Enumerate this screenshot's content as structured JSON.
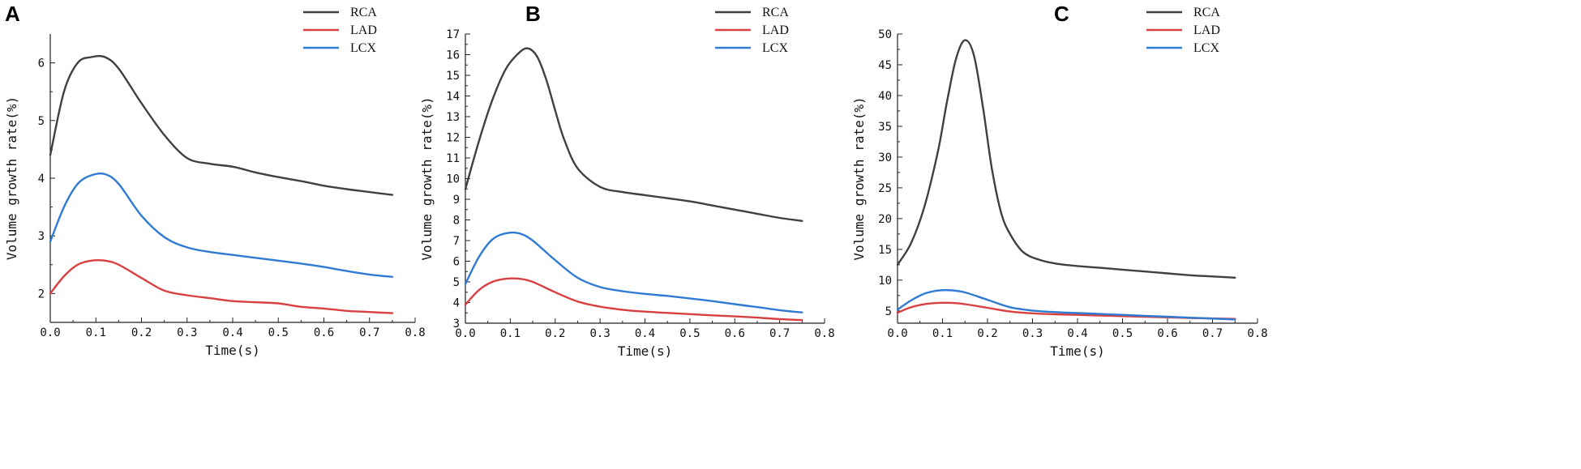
{
  "colors": {
    "RCA": "#404040",
    "LAD": "#d94040",
    "LCX": "#2f7bd4"
  },
  "chart_data": [
    {
      "type": "line",
      "panel": "A",
      "xlabel": "Time(s)",
      "ylabel": "Volume growth rate(%)",
      "xlim": [
        0.0,
        0.8
      ],
      "ylim": [
        1.5,
        6.5
      ],
      "xticks": [
        0.0,
        0.1,
        0.2,
        0.3,
        0.4,
        0.5,
        0.6,
        0.7,
        0.8
      ],
      "xtick_labels": [
        "0.0",
        "0.1",
        "0.2",
        "0.3",
        "0.4",
        "0.5",
        "0.6",
        "0.7",
        "0.8"
      ],
      "yticks": [
        2,
        3,
        4,
        5,
        6
      ],
      "ytick_labels": [
        "2",
        "3",
        "4",
        "5",
        "6"
      ],
      "grid": false,
      "legend": "top-right",
      "series": [
        {
          "name": "RCA",
          "x": [
            0.0,
            0.03,
            0.06,
            0.09,
            0.12,
            0.15,
            0.2,
            0.25,
            0.3,
            0.35,
            0.4,
            0.45,
            0.5,
            0.55,
            0.6,
            0.65,
            0.7,
            0.75
          ],
          "y": [
            4.4,
            5.5,
            6.0,
            6.1,
            6.1,
            5.9,
            5.3,
            4.75,
            4.35,
            4.25,
            4.2,
            4.1,
            4.02,
            3.95,
            3.87,
            3.81,
            3.76,
            3.71
          ]
        },
        {
          "name": "LAD",
          "x": [
            0.0,
            0.03,
            0.06,
            0.09,
            0.12,
            0.15,
            0.2,
            0.25,
            0.3,
            0.35,
            0.4,
            0.45,
            0.5,
            0.55,
            0.6,
            0.65,
            0.7,
            0.75
          ],
          "y": [
            2.0,
            2.3,
            2.5,
            2.57,
            2.57,
            2.5,
            2.27,
            2.05,
            1.97,
            1.92,
            1.87,
            1.85,
            1.83,
            1.77,
            1.74,
            1.7,
            1.68,
            1.66
          ]
        },
        {
          "name": "LCX",
          "x": [
            0.0,
            0.03,
            0.06,
            0.09,
            0.12,
            0.15,
            0.2,
            0.25,
            0.3,
            0.35,
            0.4,
            0.45,
            0.5,
            0.55,
            0.6,
            0.65,
            0.7,
            0.75
          ],
          "y": [
            2.9,
            3.5,
            3.9,
            4.05,
            4.07,
            3.9,
            3.35,
            2.98,
            2.8,
            2.72,
            2.67,
            2.62,
            2.57,
            2.52,
            2.46,
            2.39,
            2.33,
            2.29
          ]
        }
      ]
    },
    {
      "type": "line",
      "panel": "B",
      "xlabel": "Time(s)",
      "ylabel": "Volume growth rate(%)",
      "xlim": [
        0.0,
        0.8
      ],
      "ylim": [
        3,
        17
      ],
      "xticks": [
        0.0,
        0.1,
        0.2,
        0.3,
        0.4,
        0.5,
        0.6,
        0.7,
        0.8
      ],
      "xtick_labels": [
        "0.0",
        "0.1",
        "0.2",
        "0.3",
        "0.4",
        "0.5",
        "0.6",
        "0.7",
        "0.8"
      ],
      "yticks": [
        3,
        4,
        5,
        6,
        7,
        8,
        9,
        10,
        11,
        12,
        13,
        14,
        15,
        16,
        17
      ],
      "ytick_labels": [
        "3",
        "4",
        "5",
        "6",
        "7",
        "8",
        "9",
        "10",
        "11",
        "12",
        "13",
        "14",
        "15",
        "16",
        "17"
      ],
      "grid": false,
      "legend": "top-right",
      "series": [
        {
          "name": "RCA",
          "x": [
            0.0,
            0.03,
            0.06,
            0.09,
            0.12,
            0.14,
            0.16,
            0.18,
            0.2,
            0.22,
            0.25,
            0.3,
            0.35,
            0.4,
            0.45,
            0.5,
            0.55,
            0.6,
            0.65,
            0.7,
            0.75
          ],
          "y": [
            9.5,
            11.8,
            13.8,
            15.3,
            16.1,
            16.3,
            15.9,
            14.8,
            13.3,
            11.9,
            10.5,
            9.6,
            9.35,
            9.2,
            9.05,
            8.9,
            8.7,
            8.5,
            8.3,
            8.1,
            7.95
          ]
        },
        {
          "name": "LAD",
          "x": [
            0.0,
            0.03,
            0.06,
            0.09,
            0.12,
            0.15,
            0.2,
            0.25,
            0.3,
            0.35,
            0.4,
            0.45,
            0.5,
            0.55,
            0.6,
            0.65,
            0.7,
            0.75
          ],
          "y": [
            3.9,
            4.6,
            5.0,
            5.15,
            5.15,
            5.0,
            4.5,
            4.05,
            3.8,
            3.65,
            3.56,
            3.5,
            3.44,
            3.38,
            3.33,
            3.27,
            3.2,
            3.15
          ]
        },
        {
          "name": "LCX",
          "x": [
            0.0,
            0.03,
            0.06,
            0.09,
            0.12,
            0.15,
            0.2,
            0.25,
            0.3,
            0.35,
            0.4,
            0.45,
            0.5,
            0.55,
            0.6,
            0.65,
            0.7,
            0.75
          ],
          "y": [
            4.9,
            6.2,
            7.05,
            7.35,
            7.35,
            7.0,
            6.05,
            5.2,
            4.75,
            4.55,
            4.42,
            4.32,
            4.2,
            4.07,
            3.92,
            3.78,
            3.63,
            3.52
          ]
        }
      ]
    },
    {
      "type": "line",
      "panel": "C",
      "xlabel": "Time(s)",
      "ylabel": "Volume growth rate(%)",
      "xlim": [
        0.0,
        0.8
      ],
      "ylim": [
        3,
        50
      ],
      "xticks": [
        0.0,
        0.1,
        0.2,
        0.3,
        0.4,
        0.5,
        0.6,
        0.7,
        0.8
      ],
      "xtick_labels": [
        "0.0",
        "0.1",
        "0.2",
        "0.3",
        "0.4",
        "0.5",
        "0.6",
        "0.7",
        "0.8"
      ],
      "yticks": [
        5,
        10,
        15,
        20,
        25,
        30,
        35,
        40,
        45,
        50
      ],
      "ytick_labels": [
        "5",
        "10",
        "15",
        "20",
        "25",
        "30",
        "35",
        "40",
        "45",
        "50"
      ],
      "grid": false,
      "legend": "top-right",
      "series": [
        {
          "name": "RCA",
          "x": [
            0.0,
            0.03,
            0.06,
            0.09,
            0.11,
            0.13,
            0.15,
            0.17,
            0.19,
            0.21,
            0.23,
            0.25,
            0.28,
            0.32,
            0.36,
            0.4,
            0.45,
            0.5,
            0.55,
            0.6,
            0.65,
            0.7,
            0.75
          ],
          "y": [
            12.5,
            16.0,
            22.0,
            31.0,
            39.0,
            46.0,
            49.0,
            46.5,
            38.0,
            28.0,
            21.0,
            17.5,
            14.5,
            13.2,
            12.6,
            12.3,
            12.0,
            11.7,
            11.4,
            11.1,
            10.8,
            10.6,
            10.4
          ]
        },
        {
          "name": "LAD",
          "x": [
            0.0,
            0.03,
            0.06,
            0.09,
            0.12,
            0.15,
            0.2,
            0.25,
            0.3,
            0.35,
            0.4,
            0.45,
            0.5,
            0.55,
            0.6,
            0.65,
            0.7,
            0.75
          ],
          "y": [
            4.7,
            5.6,
            6.1,
            6.3,
            6.3,
            6.1,
            5.5,
            4.9,
            4.6,
            4.45,
            4.35,
            4.25,
            4.15,
            4.05,
            3.95,
            3.85,
            3.78,
            3.7
          ]
        },
        {
          "name": "LCX",
          "x": [
            0.0,
            0.03,
            0.06,
            0.09,
            0.12,
            0.15,
            0.2,
            0.25,
            0.3,
            0.35,
            0.4,
            0.45,
            0.5,
            0.55,
            0.6,
            0.65,
            0.7,
            0.75
          ],
          "y": [
            5.2,
            6.7,
            7.8,
            8.3,
            8.35,
            8.0,
            6.8,
            5.6,
            5.05,
            4.8,
            4.65,
            4.5,
            4.35,
            4.2,
            4.05,
            3.9,
            3.75,
            3.6
          ]
        }
      ]
    }
  ]
}
